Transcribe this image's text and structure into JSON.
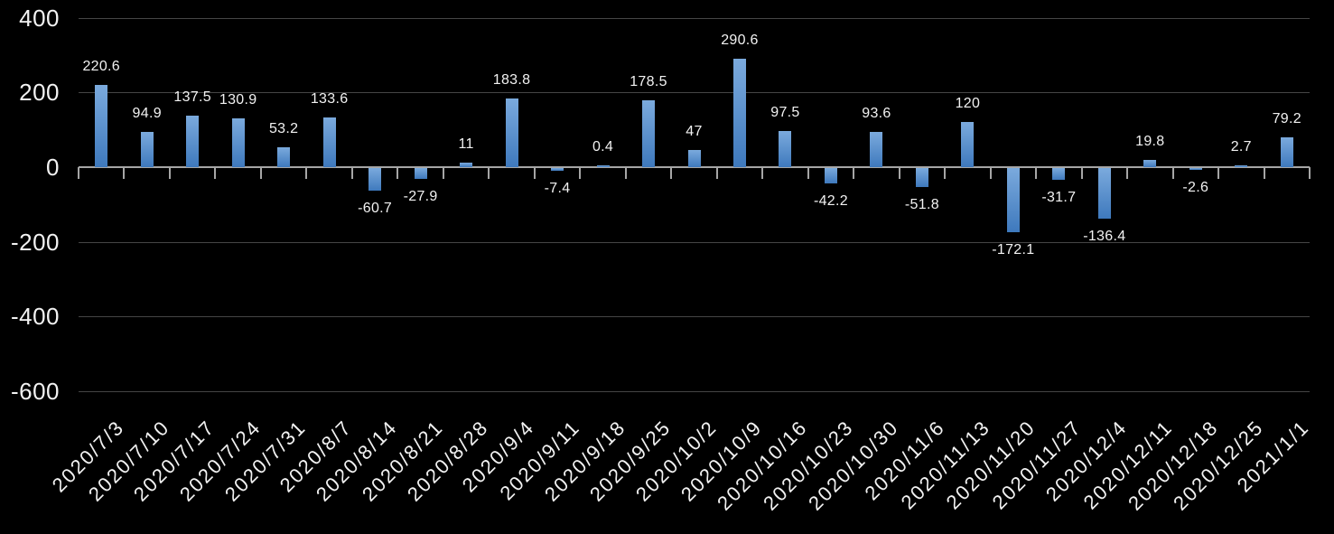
{
  "colors": {
    "background": "#000000",
    "bar_gradient_top": "#7BAADD",
    "bar_gradient_bottom": "#3E79BD",
    "zero_axis_line": "#A6A6A6",
    "gridline": "#454545",
    "text": "#F2F2F2"
  },
  "chart_data": {
    "type": "bar",
    "title": "",
    "xlabel": "",
    "ylabel": "",
    "ylim": [
      -600,
      400
    ],
    "grid": true,
    "legend": false,
    "y_ticks": [
      400,
      200,
      0,
      -200,
      -400,
      -600
    ],
    "y_tick_labels": [
      "400",
      "200",
      "0",
      "-200",
      "-400",
      "-600"
    ],
    "categories": [
      "2020/7/3",
      "2020/7/10",
      "2020/7/17",
      "2020/7/24",
      "2020/7/31",
      "2020/8/7",
      "2020/8/14",
      "2020/8/21",
      "2020/8/28",
      "2020/9/4",
      "2020/9/11",
      "2020/9/18",
      "2020/9/25",
      "2020/10/2",
      "2020/10/9",
      "2020/10/16",
      "2020/10/23",
      "2020/10/30",
      "2020/11/6",
      "2020/11/13",
      "2020/11/20",
      "2020/11/27",
      "2020/12/4",
      "2020/12/11",
      "2020/12/18",
      "2020/12/25",
      "2021/1/1"
    ],
    "values": [
      220.6,
      94.9,
      137.5,
      130.9,
      53.2,
      133.6,
      -60.7,
      -27.9,
      11,
      183.8,
      -7.4,
      0.4,
      178.5,
      47,
      290.6,
      97.5,
      -42.2,
      93.6,
      -51.8,
      120,
      -172.1,
      -31.7,
      -136.4,
      19.8,
      -2.6,
      2.7,
      79.2
    ],
    "data_labels": [
      "220.6",
      "94.9",
      "137.5",
      "130.9",
      "53.2",
      "133.6",
      "-60.7",
      "-27.9",
      "11",
      "183.8",
      "-7.4",
      "0.4",
      "178.5",
      "47",
      "290.6",
      "97.5",
      "-42.2",
      "93.6",
      "-51.8",
      "120",
      "-172.1",
      "-31.7",
      "-136.4",
      "19.8",
      "-2.6",
      "2.7",
      "79.2"
    ]
  }
}
